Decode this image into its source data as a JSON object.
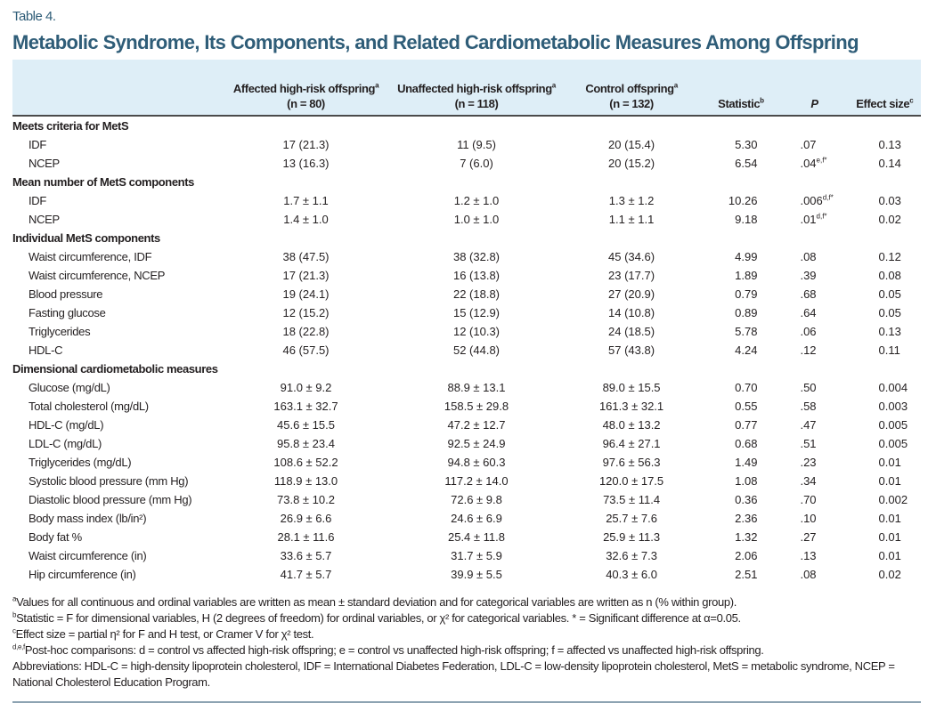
{
  "table_label": "Table 4.",
  "title": "Metabolic Syndrome, Its Components, and Related Cardiometabolic Measures Among Offspring",
  "columns": [
    {
      "name": "Affected high-risk offspring",
      "sup": "a",
      "n": "(n = 80)"
    },
    {
      "name": "Unaffected high-risk offspring",
      "sup": "a",
      "n": "(n = 118)"
    },
    {
      "name": "Control offspring",
      "sup": "a",
      "n": "(n = 132)"
    },
    {
      "name": "Statistic",
      "sup": "b"
    },
    {
      "name": "P"
    },
    {
      "name": "Effect size",
      "sup": "c"
    }
  ],
  "sections": [
    {
      "title": "Meets criteria for MetS",
      "rows": [
        {
          "label": "IDF",
          "v": [
            "17 (21.3)",
            "11 (9.5)",
            "20 (15.4)",
            "5.30",
            ".07",
            "",
            "0.13"
          ]
        },
        {
          "label": "NCEP",
          "v": [
            "13 (16.3)",
            "7 (6.0)",
            "20 (15.2)",
            "6.54",
            ".04",
            "e,f*",
            "0.14"
          ]
        }
      ]
    },
    {
      "title": "Mean number of MetS components",
      "rows": [
        {
          "label": "IDF",
          "v": [
            "1.7 ± 1.1",
            "1.2 ± 1.0",
            "1.3 ± 1.2",
            "10.26",
            ".006",
            "d,f*",
            "0.03"
          ]
        },
        {
          "label": "NCEP",
          "v": [
            "1.4 ± 1.0",
            "1.0 ± 1.0",
            "1.1 ± 1.1",
            "9.18",
            ".01",
            "d,f*",
            "0.02"
          ]
        }
      ]
    },
    {
      "title": "Individual MetS components",
      "rows": [
        {
          "label": "Waist circumference, IDF",
          "v": [
            "38 (47.5)",
            "38 (32.8)",
            "45 (34.6)",
            "4.99",
            ".08",
            "",
            "0.12"
          ]
        },
        {
          "label": "Waist circumference, NCEP",
          "v": [
            "17 (21.3)",
            "16 (13.8)",
            "23 (17.7)",
            "1.89",
            ".39",
            "",
            "0.08"
          ]
        },
        {
          "label": "Blood pressure",
          "v": [
            "19 (24.1)",
            "22 (18.8)",
            "27 (20.9)",
            "0.79",
            ".68",
            "",
            "0.05"
          ]
        },
        {
          "label": "Fasting glucose",
          "v": [
            "12 (15.2)",
            "15 (12.9)",
            "14 (10.8)",
            "0.89",
            ".64",
            "",
            "0.05"
          ]
        },
        {
          "label": "Triglycerides",
          "v": [
            "18 (22.8)",
            "12 (10.3)",
            "24 (18.5)",
            "5.78",
            ".06",
            "",
            "0.13"
          ]
        },
        {
          "label": "HDL-C",
          "v": [
            "46 (57.5)",
            "52 (44.8)",
            "57 (43.8)",
            "4.24",
            ".12",
            "",
            "0.11"
          ]
        }
      ]
    },
    {
      "title": "Dimensional cardiometabolic measures",
      "rows": [
        {
          "label": "Glucose (mg/dL)",
          "v": [
            "91.0 ± 9.2",
            "88.9 ± 13.1",
            "89.0 ± 15.5",
            "0.70",
            ".50",
            "",
            "0.004"
          ]
        },
        {
          "label": "Total cholesterol (mg/dL)",
          "v": [
            "163.1 ± 32.7",
            "158.5 ± 29.8",
            "161.3 ± 32.1",
            "0.55",
            ".58",
            "",
            "0.003"
          ]
        },
        {
          "label": "HDL-C (mg/dL)",
          "v": [
            "45.6 ± 15.5",
            "47.2 ± 12.7",
            "48.0 ± 13.2",
            "0.77",
            ".47",
            "",
            "0.005"
          ]
        },
        {
          "label": "LDL-C (mg/dL)",
          "v": [
            "95.8 ± 23.4",
            "92.5 ± 24.9",
            "96.4 ± 27.1",
            "0.68",
            ".51",
            "",
            "0.005"
          ]
        },
        {
          "label": "Triglycerides (mg/dL)",
          "v": [
            "108.6 ± 52.2",
            "94.8 ± 60.3",
            "97.6 ± 56.3",
            "1.49",
            ".23",
            "",
            "0.01"
          ]
        },
        {
          "label": "Systolic blood pressure (mm Hg)",
          "v": [
            "118.9 ± 13.0",
            "117.2 ± 14.0",
            "120.0 ± 17.5",
            "1.08",
            ".34",
            "",
            "0.01"
          ]
        },
        {
          "label": "Diastolic blood pressure (mm Hg)",
          "v": [
            "73.8 ± 10.2",
            "72.6 ± 9.8",
            "73.5 ± 11.4",
            "0.36",
            ".70",
            "",
            "0.002"
          ]
        },
        {
          "label": "Body mass index (lb/in²)",
          "v": [
            "26.9 ± 6.6",
            "24.6 ± 6.9",
            "25.7 ± 7.6",
            "2.36",
            ".10",
            "",
            "0.01"
          ]
        },
        {
          "label": "Body fat %",
          "v": [
            "28.1 ± 11.6",
            "25.4 ± 11.8",
            "25.9 ± 11.3",
            "1.32",
            ".27",
            "",
            "0.01"
          ]
        },
        {
          "label": "Waist circumference (in)",
          "v": [
            "33.6 ± 5.7",
            "31.7 ± 5.9",
            "32.6 ± 7.3",
            "2.06",
            ".13",
            "",
            "0.01"
          ]
        },
        {
          "label": "Hip circumference (in)",
          "v": [
            "41.7 ± 5.7",
            "39.9 ± 5.5",
            "40.3 ± 6.0",
            "2.51",
            ".08",
            "",
            "0.02"
          ]
        }
      ]
    }
  ],
  "footnotes": [
    {
      "sup": "a",
      "text": "Values for all continuous and ordinal variables are written as mean ± standard deviation and for categorical variables are written as n (% within group)."
    },
    {
      "sup": "b",
      "text": "Statistic = F for dimensional variables, H (2 degrees of freedom) for ordinal variables, or χ² for categorical variables. * = Significant difference at α=0.05."
    },
    {
      "sup": "c",
      "text": "Effect size = partial η² for F and H test, or Cramer V for χ² test."
    },
    {
      "sup": "d,e,f",
      "text": "Post-hoc comparisons: d = control vs affected high-risk offspring; e = control vs unaffected high-risk offspring; f = affected vs unaffected high-risk offspring."
    },
    {
      "sup": "",
      "text": "Abbreviations: HDL-C = high-density lipoprotein cholesterol, IDF = International Diabetes Federation, LDL-C = low-density lipoprotein cholesterol, MetS = metabolic syndrome, NCEP = National Cholesterol Education Program."
    }
  ],
  "colors": {
    "title": "#2f5d78",
    "header_bg": "#deeef7"
  }
}
